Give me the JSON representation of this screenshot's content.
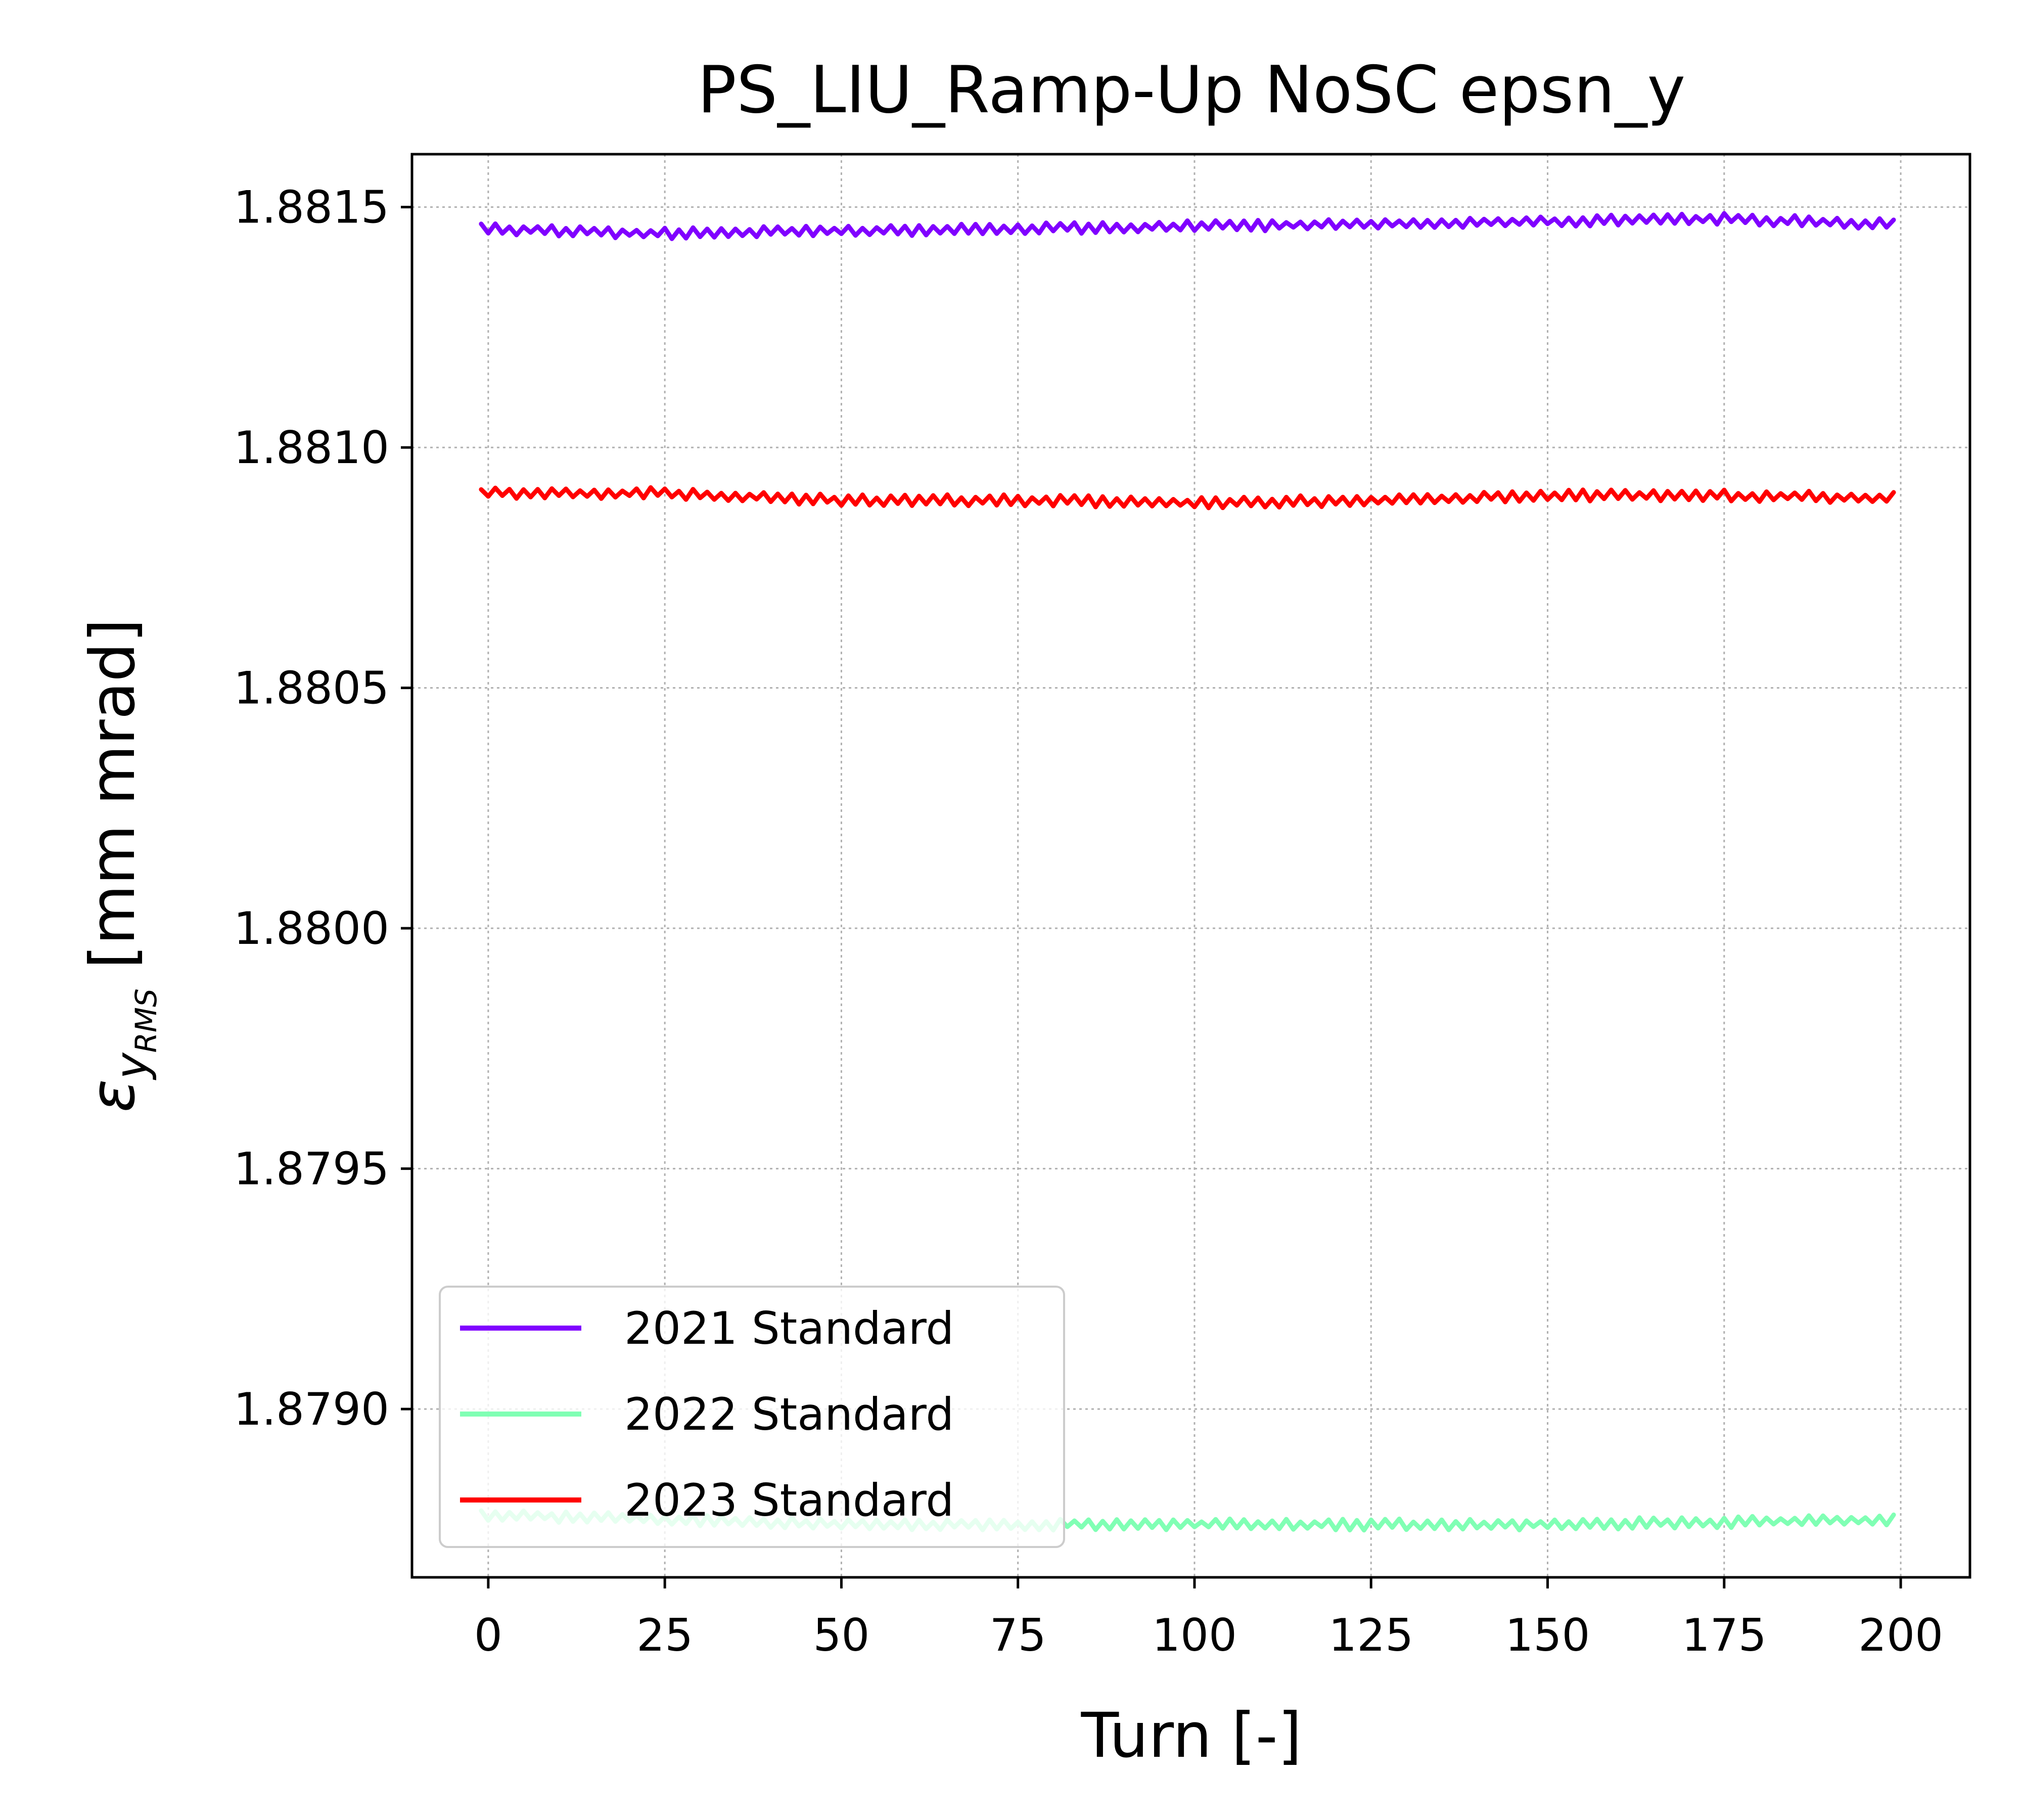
{
  "chart_data": {
    "type": "line",
    "title": "PS_LIU_Ramp-Up NoSC epsn_y",
    "xlabel": "Turn [-]",
    "ylabel_symbol": "ε",
    "ylabel_sub": "y",
    "ylabel_subsub": "RMS",
    "ylabel_unit": "[mm mrad]",
    "xlim": [
      -10.8,
      209.8
    ],
    "ylim": [
      1.87865,
      1.88161
    ],
    "x_ticks": [
      0,
      25,
      50,
      75,
      100,
      125,
      150,
      175,
      200
    ],
    "x_tick_labels": [
      "0",
      "25",
      "50",
      "75",
      "100",
      "125",
      "150",
      "175",
      "200"
    ],
    "y_ticks": [
      1.879,
      1.8795,
      1.88,
      1.8805,
      1.881,
      1.8815
    ],
    "y_tick_labels": [
      "1.8790",
      "1.8795",
      "1.8800",
      "1.8805",
      "1.8810",
      "1.8815"
    ],
    "grid": true,
    "legend_position": "bottom-left",
    "series": [
      {
        "name": "2021 Standard",
        "color": "#8000ff",
        "points": [
          [
            -1,
            1.881455
          ],
          [
            25,
            1.881445
          ],
          [
            50,
            1.88145
          ],
          [
            75,
            1.881455
          ],
          [
            100,
            1.88146
          ],
          [
            125,
            1.881465
          ],
          [
            150,
            1.88147
          ],
          [
            175,
            1.881475
          ],
          [
            199,
            1.881465
          ]
        ],
        "noise": 1.2e-05
      },
      {
        "name": "2022 Standard",
        "color": "#80ffb4",
        "points": [
          [
            -1,
            1.87878
          ],
          [
            25,
            1.87877
          ],
          [
            50,
            1.87876
          ],
          [
            75,
            1.87876
          ],
          [
            100,
            1.87876
          ],
          [
            125,
            1.87876
          ],
          [
            150,
            1.87876
          ],
          [
            175,
            1.878765
          ],
          [
            199,
            1.87877
          ]
        ],
        "noise": 1.2e-05
      },
      {
        "name": "2023 Standard",
        "color": "#ff0000",
        "points": [
          [
            -1,
            1.880905
          ],
          [
            25,
            1.880905
          ],
          [
            50,
            1.88089
          ],
          [
            75,
            1.88089
          ],
          [
            100,
            1.880885
          ],
          [
            125,
            1.88089
          ],
          [
            150,
            1.8809
          ],
          [
            175,
            1.8809
          ],
          [
            199,
            1.880895
          ]
        ],
        "noise": 1.2e-05
      }
    ]
  }
}
